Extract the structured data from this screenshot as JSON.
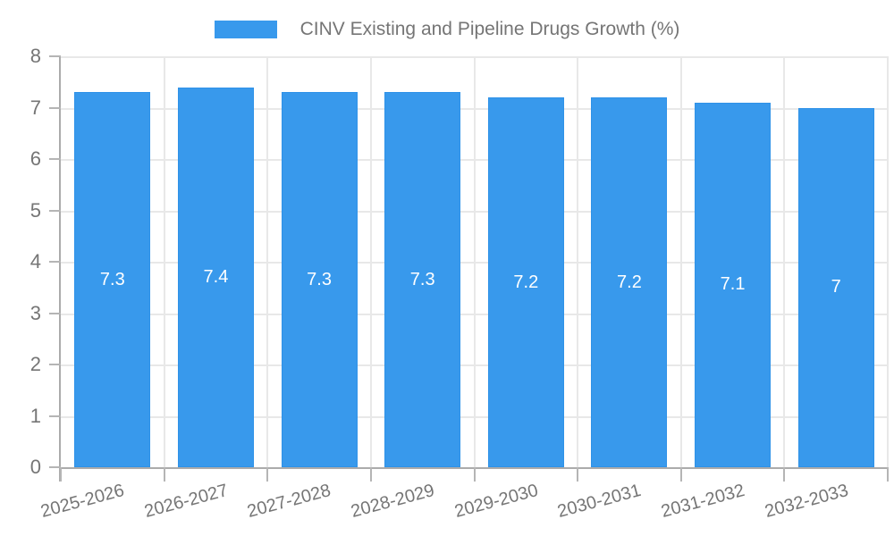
{
  "chart_data": {
    "type": "bar",
    "title": "CINV Existing and Pipeline Drugs Growth (%)",
    "legend_label": "CINV Existing and Pipeline Drugs Growth (%)",
    "legend_position": "top",
    "categories": [
      "2025-2026",
      "2026-2027",
      "2027-2028",
      "2028-2029",
      "2029-2030",
      "2030-2031",
      "2031-2032",
      "2032-2033"
    ],
    "values": [
      7.3,
      7.4,
      7.3,
      7.3,
      7.2,
      7.2,
      7.1,
      7
    ],
    "value_labels": [
      "7.3",
      "7.4",
      "7.3",
      "7.3",
      "7.2",
      "7.2",
      "7.1",
      "7"
    ],
    "xlabel": "",
    "ylabel": "",
    "ylim": [
      0,
      8
    ],
    "yticks": [
      "0",
      "1",
      "2",
      "3",
      "4",
      "5",
      "6",
      "7",
      "8"
    ],
    "grid": true,
    "colors": {
      "bar": "#3899ec",
      "bar_border": "#2f92e8",
      "grid": "#e8e8e8",
      "axis": "#ababab",
      "tick": "#b5b5b5",
      "tick_label": "#757575",
      "value_label": "#ffffff",
      "background": "#ffffff"
    }
  }
}
